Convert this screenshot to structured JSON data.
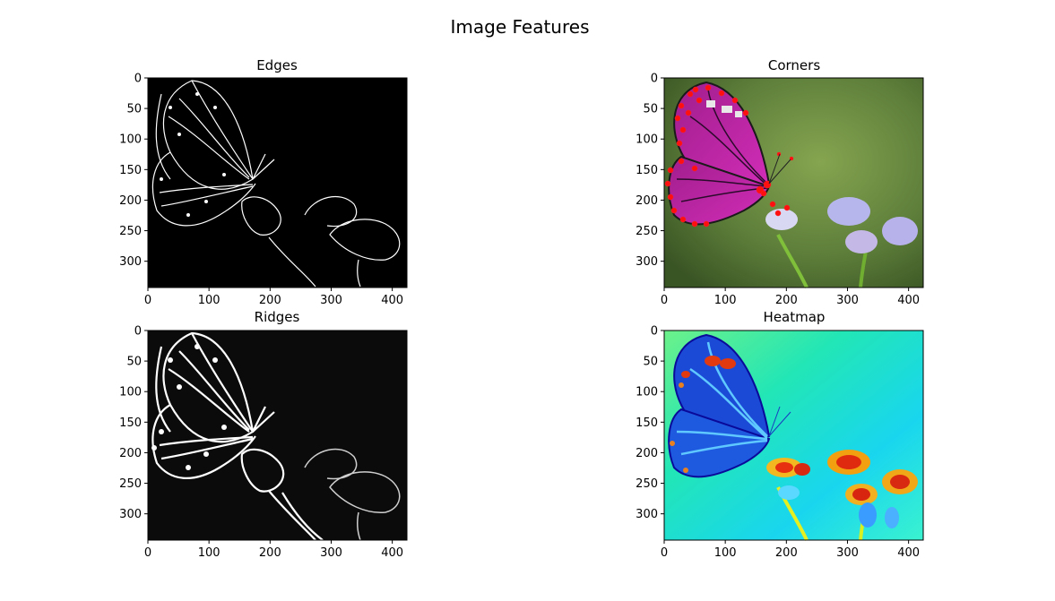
{
  "figure": {
    "title": "Image Features"
  },
  "chart_data": [
    {
      "type": "image",
      "title": "Edges",
      "colormap": "gray",
      "xlim": [
        0,
        424
      ],
      "ylim": [
        343,
        0
      ],
      "xticks": [
        0,
        100,
        200,
        300,
        400
      ],
      "yticks": [
        0,
        50,
        100,
        150,
        200,
        250,
        300
      ],
      "background": "#000000"
    },
    {
      "type": "image",
      "title": "Corners",
      "colormap": "rgb",
      "xlim": [
        0,
        424
      ],
      "ylim": [
        343,
        0
      ],
      "xticks": [
        0,
        100,
        200,
        300,
        400
      ],
      "yticks": [
        0,
        50,
        100,
        150,
        200,
        250,
        300
      ],
      "background": "#5d7e3a",
      "markers_color": "#ff0000"
    },
    {
      "type": "image",
      "title": "Ridges",
      "colormap": "gray",
      "xlim": [
        0,
        424
      ],
      "ylim": [
        343,
        0
      ],
      "xticks": [
        0,
        100,
        200,
        300,
        400
      ],
      "yticks": [
        0,
        50,
        100,
        150,
        200,
        250,
        300
      ],
      "background": "#0b0b0b"
    },
    {
      "type": "image",
      "title": "Heatmap",
      "colormap": "jet",
      "xlim": [
        0,
        424
      ],
      "ylim": [
        343,
        0
      ],
      "xticks": [
        0,
        100,
        200,
        300,
        400
      ],
      "yticks": [
        0,
        50,
        100,
        150,
        200,
        250,
        300
      ],
      "background": "#22e6ea"
    }
  ]
}
